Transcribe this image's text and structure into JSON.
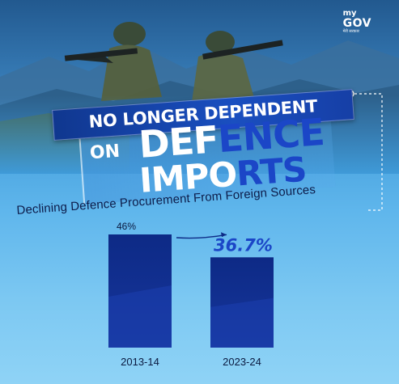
{
  "brand": {
    "logo_my": "my",
    "logo_gov": "GOV",
    "logo_tagline": "मेरी सरकार"
  },
  "headline": {
    "line1": "NO LONGER DEPENDENT",
    "on": "ON",
    "defence_part1": "DEF",
    "defence_part2": "ENCE",
    "imports_part1": "IMPO",
    "imports_part2": "RTS"
  },
  "colors": {
    "bar_dark": "#0d2a86",
    "bar_light": "#17369c",
    "accent": "#1b46c7"
  },
  "chart_data": {
    "type": "bar",
    "title": "Declining Defence Procurement From Foreign Sources",
    "categories": [
      "2013-14",
      "2023-24"
    ],
    "values": [
      46,
      36.7
    ],
    "value_labels": [
      "46%",
      "36.7%"
    ],
    "ylim": [
      0,
      50
    ],
    "grid": false,
    "legend": "none",
    "annotation": "arrow from 2013-14 to 2023-24 indicating decline"
  }
}
